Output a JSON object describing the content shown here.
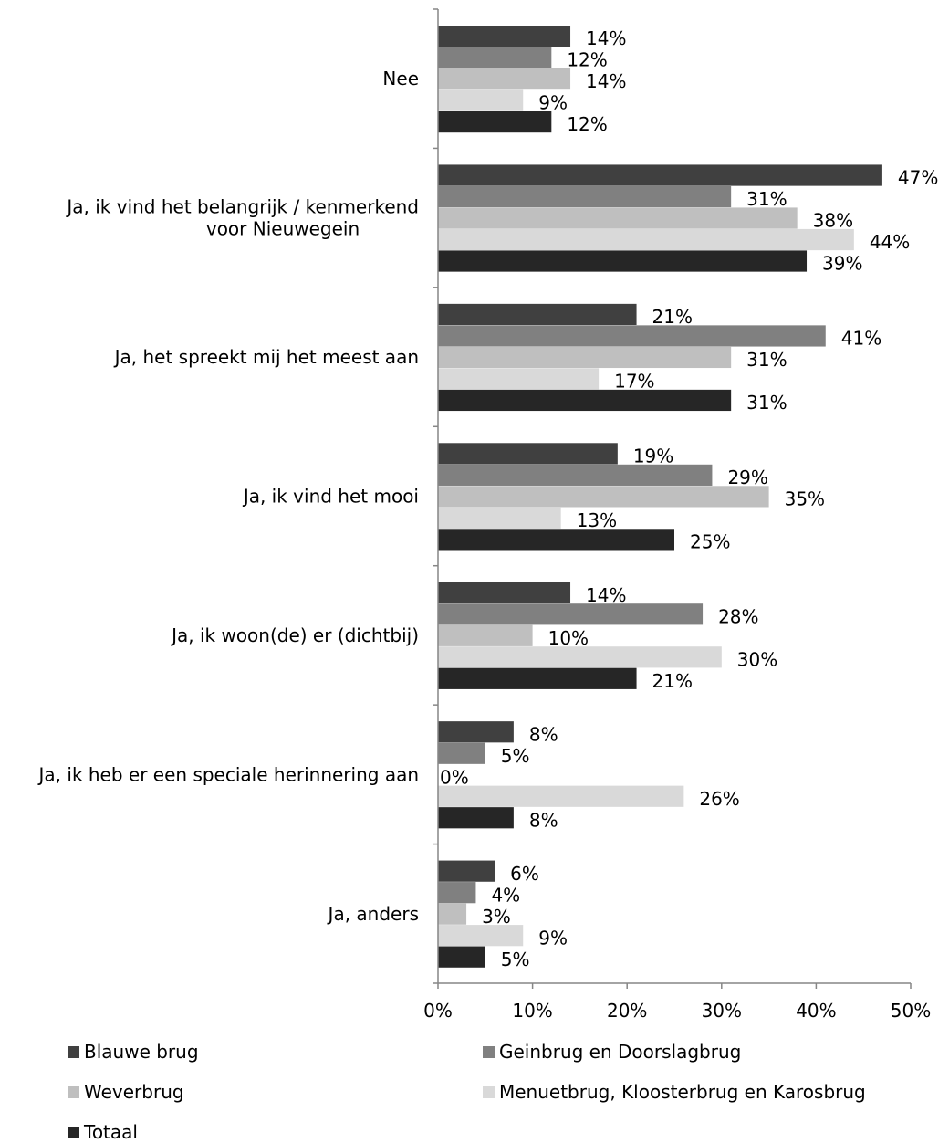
{
  "chart_data": {
    "type": "bar",
    "orientation": "horizontal",
    "categories": [
      [
        "Nee"
      ],
      [
        "Ja, ik vind het belangrijk / kenmerkend",
        "voor Nieuwegein"
      ],
      [
        "Ja, het spreekt mij het meest aan"
      ],
      [
        "Ja, ik vind het mooi"
      ],
      [
        "Ja, ik woon(de) er (dichtbij)"
      ],
      [
        "Ja, ik heb er een speciale herinnering aan"
      ],
      [
        "Ja, anders"
      ]
    ],
    "series": [
      {
        "name": "Blauwe brug",
        "color": "#404040",
        "values": [
          14,
          47,
          21,
          19,
          14,
          8,
          6
        ],
        "labels": [
          "14%",
          "47%",
          "21%",
          "19%",
          "14%",
          "8%",
          "6%"
        ]
      },
      {
        "name": "Geinbrug en Doorslagbrug",
        "color": "#808080",
        "values": [
          12,
          31,
          41,
          29,
          28,
          5,
          4
        ],
        "labels": [
          "12%",
          "31%",
          "41%",
          "29%",
          "28%",
          "5%",
          "4%"
        ]
      },
      {
        "name": "Weverbrug",
        "color": "#bfbfbf",
        "values": [
          14,
          38,
          31,
          35,
          10,
          0,
          3
        ],
        "labels": [
          "14%",
          "38%",
          "31%",
          "35%",
          "10%",
          "0%",
          "3%"
        ]
      },
      {
        "name": "Menuetbrug, Kloosterbrug en Karosbrug",
        "color": "#d9d9d9",
        "values": [
          9,
          44,
          17,
          13,
          30,
          26,
          9
        ],
        "labels": [
          "9%",
          "44%",
          "17%",
          "13%",
          "30%",
          "26%",
          "9%"
        ]
      },
      {
        "name": "Totaal",
        "color": "#262626",
        "values": [
          12,
          39,
          31,
          25,
          21,
          8,
          5
        ],
        "labels": [
          "12%",
          "39%",
          "31%",
          "25%",
          "21%",
          "8%",
          "5%"
        ]
      }
    ],
    "xlim": [
      0,
      50
    ],
    "xticks": [
      0,
      10,
      20,
      30,
      40,
      50
    ],
    "xtick_labels": [
      "0%",
      "10%",
      "20%",
      "30%",
      "40%",
      "50%"
    ],
    "title": "",
    "xlabel": "",
    "ylabel": "",
    "grid": false,
    "legend_position": "bottom"
  }
}
